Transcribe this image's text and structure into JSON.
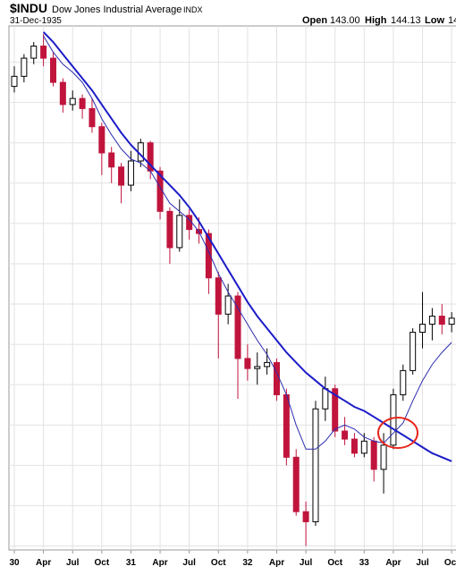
{
  "header": {
    "symbol": "$INDU",
    "name": "Dow Jones Industrial Average",
    "exchange": "INDX",
    "date": "31-Dec-1935",
    "open_label": "Open",
    "open": "143.00",
    "high_label": "High",
    "high": "144.13",
    "low_label": "Low",
    "low": "14"
  },
  "chart_data": {
    "type": "candlestick",
    "categories": [
      "30",
      null,
      null,
      "Apr",
      null,
      null,
      "Jul",
      null,
      null,
      "Oct",
      null,
      null,
      "31",
      null,
      null,
      "Apr",
      null,
      null,
      "Jul",
      null,
      null,
      "Oct",
      null,
      null,
      "32",
      null,
      null,
      "Apr",
      null,
      null,
      "Jul",
      null,
      null,
      "Oct",
      null,
      null,
      "33",
      null,
      null,
      "Apr",
      null,
      null,
      "Jul",
      null,
      null,
      "Oct"
    ],
    "open": [
      268,
      273,
      282,
      288,
      282,
      270,
      259,
      262,
      257,
      248,
      235,
      228,
      219,
      231,
      240,
      226,
      206,
      188,
      204,
      197,
      195,
      173,
      155,
      164,
      133,
      128,
      129,
      131,
      115,
      84,
      57,
      52,
      108,
      118,
      97,
      93,
      86,
      92,
      78,
      90,
      115,
      127,
      146,
      150,
      154,
      150
    ],
    "high": [
      278,
      284,
      290,
      294,
      285,
      272,
      266,
      264,
      262,
      250,
      238,
      230,
      236,
      242,
      241,
      228,
      208,
      212,
      207,
      203,
      197,
      176,
      170,
      166,
      140,
      136,
      138,
      133,
      118,
      88,
      62,
      112,
      124,
      120,
      104,
      96,
      96,
      94,
      96,
      118,
      130,
      148,
      166,
      158,
      160,
      156
    ],
    "low": [
      265,
      270,
      279,
      278,
      268,
      255,
      256,
      252,
      245,
      224,
      220,
      210,
      216,
      228,
      222,
      202,
      180,
      186,
      192,
      190,
      165,
      133,
      150,
      113,
      122,
      120,
      125,
      112,
      80,
      55,
      40,
      50,
      102,
      94,
      90,
      84,
      84,
      72,
      66,
      88,
      112,
      125,
      138,
      142,
      145,
      146
    ],
    "close": [
      273,
      282,
      288,
      282,
      270,
      259,
      262,
      257,
      248,
      235,
      228,
      219,
      231,
      240,
      226,
      206,
      188,
      204,
      197,
      195,
      173,
      155,
      164,
      133,
      128,
      129,
      131,
      115,
      84,
      57,
      52,
      108,
      118,
      97,
      93,
      86,
      92,
      78,
      90,
      115,
      127,
      146,
      150,
      154,
      150,
      153
    ],
    "up_color": "#000000",
    "down_color": "#c0143c",
    "ylim": [
      38,
      298
    ],
    "y_gridlines": [
      40,
      60,
      80,
      100,
      120,
      140,
      160,
      180,
      200,
      220,
      240,
      260,
      280
    ],
    "grid": true,
    "moving_averages": [
      {
        "color": "#2b2bb0",
        "width": 1,
        "values": [
          null,
          null,
          null,
          293,
          285,
          279,
          275,
          270,
          262,
          252,
          244,
          237,
          232,
          230,
          226,
          218,
          210,
          206,
          202,
          196,
          186,
          175,
          166,
          158,
          150,
          142,
          135,
          126,
          115,
          100,
          88,
          88,
          92,
          98,
          100,
          98,
          94,
          92,
          91,
          96,
          101,
          112,
          122,
          130,
          136,
          141
        ]
      },
      {
        "color": "#1c1cc8",
        "width": 2,
        "values": [
          null,
          null,
          null,
          295,
          290,
          284,
          278,
          272,
          266,
          259,
          252,
          245,
          239,
          234,
          229,
          224,
          219,
          214,
          208,
          201,
          193,
          185,
          177,
          169,
          161,
          154,
          148,
          142,
          136,
          131,
          126,
          122,
          118,
          115,
          112,
          109,
          107,
          104,
          101,
          98,
          95,
          92,
          89,
          86,
          84,
          82
        ]
      }
    ]
  }
}
